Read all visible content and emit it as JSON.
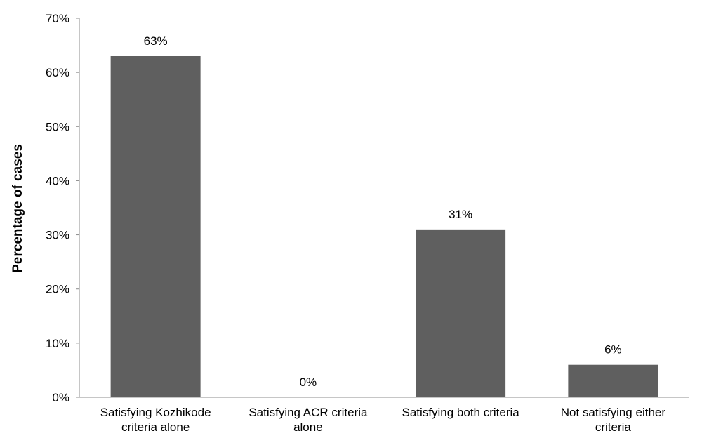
{
  "chart_data": {
    "type": "bar",
    "title": "",
    "xlabel": "",
    "ylabel": "Percentage of cases",
    "categories": [
      [
        "Satisfying Kozhikode",
        "criteria alone"
      ],
      [
        "Satisfying ACR criteria",
        "alone"
      ],
      [
        "Satisfying both criteria"
      ],
      [
        "Not satisfying either",
        "criteria"
      ]
    ],
    "values": [
      63,
      0,
      31,
      6
    ],
    "data_labels": [
      "63%",
      "0%",
      "31%",
      "6%"
    ],
    "ylim": [
      0,
      70
    ],
    "yticks": [
      0,
      10,
      20,
      30,
      40,
      50,
      60,
      70
    ],
    "ytick_labels": [
      "0%",
      "10%",
      "20%",
      "30%",
      "40%",
      "50%",
      "60%",
      "70%"
    ],
    "grid": false,
    "legend": "none",
    "colors": {
      "bar": "#5f5f5f",
      "axis": "#8c8c8c",
      "text": "#000000"
    }
  }
}
